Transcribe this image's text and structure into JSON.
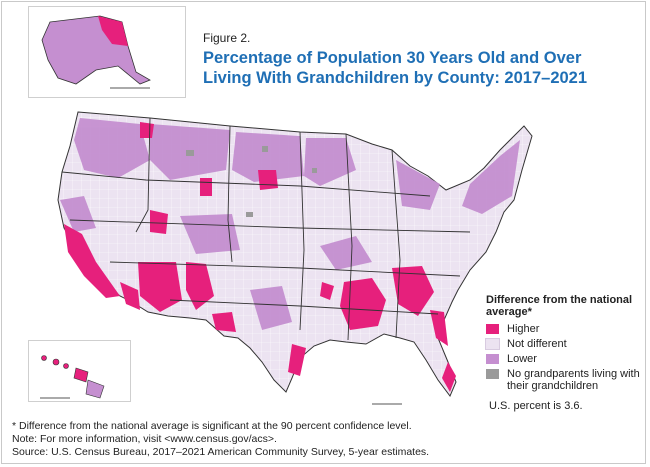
{
  "figure_label": "Figure 2.",
  "title_line1": "Percentage of Population 30 Years Old and Over",
  "title_line2": "Living With Grandchildren by County: 2017–2021",
  "legend": {
    "heading": "Difference from the national average*",
    "items": [
      {
        "label": "Higher",
        "color": "#e6207c"
      },
      {
        "label": "Not different",
        "color": "#ece3f1"
      },
      {
        "label": "Lower",
        "color": "#c58fd0"
      },
      {
        "label": "No grandparents living with their grandchildren",
        "color": "#9a9a9a"
      }
    ]
  },
  "us_percent": "U.S. percent is 3.6.",
  "footnote": "* Difference from the national average is significant at the 90 percent confidence level.",
  "note": "Note: For more information, visit <www.census.gov/acs>.",
  "source": "Source: U.S. Census Bureau, 2017–2021 American Community Survey, 5-year estimates.",
  "colors": {
    "higher": "#e6207c",
    "not_different": "#ece3f1",
    "lower": "#c58fd0",
    "none": "#9a9a9a",
    "title": "#1f6fb5",
    "borders": "#333333"
  }
}
